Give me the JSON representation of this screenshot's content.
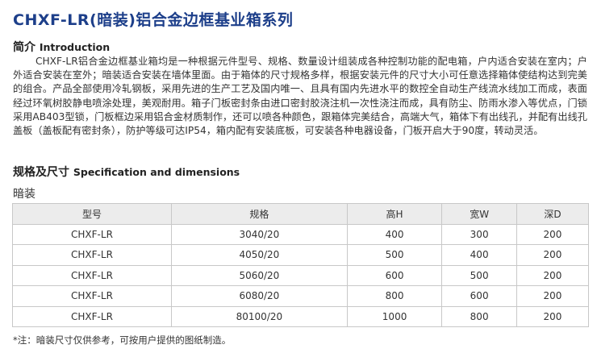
{
  "title": "CHXF-LR(暗装)铝合金边框基业箱系列",
  "intro": {
    "heading_cn": "简介",
    "heading_en": "Introduction",
    "text": "CHXF-LR铝合金边框基业箱均是一种根据元件型号、规格、数量设计组装成各种控制功能的配电箱，户内适合安装在室内；户外适合安装在室外；暗装适合安装在墙体里面。由于箱体的尺寸规格多样，根据安装元件的尺寸大小可任意选择箱体使结构达到完美的组合。产品全部使用冷轧钢板，采用先进的生产工艺及国内唯一、且具有国内先进水平的数控全自动生产线流水线加工而成，表面经过环氧树胶静电喷涂处理，美观耐用。箱子门板密封条由进口密封胶浇注机一次性浇注而成，具有防尘、防雨水渗入等优点，门锁采用AB403型锁，门板框边采用铝合金材质制作，还可以喷各种颜色，跟箱体完美结合，高端大气，箱体下有出线孔，并配有出线孔盖板（盖板配有密封条），防护等级可达IP54，箱内配有安装底板，可安装各种电器设备，门板开启大于90度，转动灵活。"
  },
  "spec": {
    "heading_cn": "规格及尺寸",
    "heading_en": "Specification and dimensions",
    "subtitle": "暗装",
    "columns": [
      "型号",
      "规格",
      "高H",
      "宽W",
      "深D"
    ],
    "rows": [
      [
        "CHXF-LR",
        "3040/20",
        "400",
        "300",
        "200"
      ],
      [
        "CHXF-LR",
        "4050/20",
        "500",
        "400",
        "200"
      ],
      [
        "CHXF-LR",
        "5060/20",
        "600",
        "500",
        "200"
      ],
      [
        "CHXF-LR",
        "6080/20",
        "800",
        "600",
        "200"
      ],
      [
        "CHXF-LR",
        "80100/20",
        "1000",
        "800",
        "200"
      ]
    ]
  },
  "note": "*注：暗装尺寸仅供参考，可按用户提供的图纸制造。",
  "colors": {
    "title": "#1d3f8a",
    "header_bg": "#ececec"
  }
}
